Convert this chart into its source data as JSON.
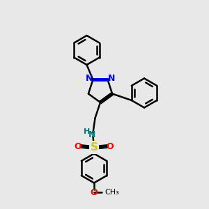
{
  "bg_color": "#e8e8e8",
  "bond_color": "#000000",
  "N_color": "#0000ff",
  "O_color": "#ff0000",
  "S_color": "#cccc00",
  "NH_color": "#008080",
  "lw": 1.8,
  "r_hex": 0.7,
  "r_pyz": 0.6,
  "xlim": [
    0,
    10
  ],
  "ylim": [
    0,
    10
  ]
}
